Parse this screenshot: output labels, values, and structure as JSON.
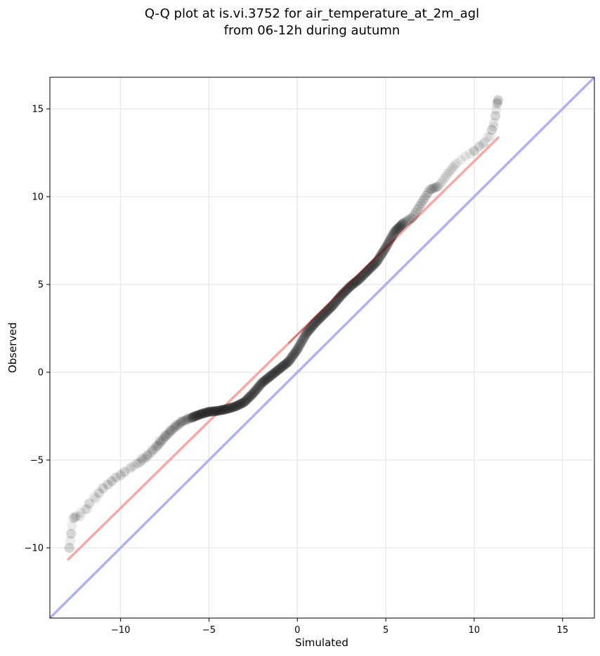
{
  "chart_data": {
    "type": "scatter",
    "title_line1": "Q-Q plot at is.vi.3752 for air_temperature_at_2m_agl",
    "title_line2": "from 06-12h during autumn",
    "xlabel": "Simulated",
    "ylabel": "Observed",
    "xlim": [
      -14,
      16.8
    ],
    "ylim": [
      -14,
      16.8
    ],
    "xticks": [
      -10,
      -5,
      0,
      5,
      10,
      15
    ],
    "yticks": [
      -10,
      -5,
      0,
      5,
      10,
      15
    ],
    "xtick_labels": [
      "−10",
      "−5",
      "0",
      "5",
      "10",
      "15"
    ],
    "ytick_labels": [
      "−10",
      "−5",
      "0",
      "5",
      "10",
      "15"
    ],
    "grid": true,
    "colors": {
      "points": "#222222",
      "fit_line": "#f4a0a0",
      "identity_line": "#a8a8f0",
      "fit_segment_dark": "#8b0000"
    },
    "identity_line": {
      "x": [
        -14,
        16.8
      ],
      "y": [
        -14,
        16.8
      ]
    },
    "fit_line": {
      "x": [
        -13,
        11.4
      ],
      "y": [
        -10.7,
        13.4
      ]
    },
    "quantile_curve": [
      [
        -12.9,
        -10.0
      ],
      [
        -12.8,
        -9.2
      ],
      [
        -12.7,
        -8.3
      ],
      [
        -12.5,
        -8.2
      ],
      [
        -12.0,
        -7.8
      ],
      [
        -11.5,
        -7.1
      ],
      [
        -11.0,
        -6.6
      ],
      [
        -10.5,
        -6.2
      ],
      [
        -10.0,
        -5.8
      ],
      [
        -9.5,
        -5.5
      ],
      [
        -9.0,
        -5.2
      ],
      [
        -8.5,
        -4.8
      ],
      [
        -8.0,
        -4.3
      ],
      [
        -7.5,
        -3.7
      ],
      [
        -7.0,
        -3.2
      ],
      [
        -6.5,
        -2.8
      ],
      [
        -6.0,
        -2.6
      ],
      [
        -5.5,
        -2.4
      ],
      [
        -5.0,
        -2.25
      ],
      [
        -4.5,
        -2.2
      ],
      [
        -4.0,
        -2.1
      ],
      [
        -3.5,
        -1.95
      ],
      [
        -3.0,
        -1.7
      ],
      [
        -2.5,
        -1.2
      ],
      [
        -2.0,
        -0.6
      ],
      [
        -1.5,
        -0.2
      ],
      [
        -1.0,
        0.2
      ],
      [
        -0.5,
        0.6
      ],
      [
        0.0,
        1.3
      ],
      [
        0.5,
        2.2
      ],
      [
        1.0,
        2.8
      ],
      [
        1.5,
        3.3
      ],
      [
        2.0,
        3.8
      ],
      [
        2.5,
        4.4
      ],
      [
        3.0,
        4.9
      ],
      [
        3.5,
        5.3
      ],
      [
        4.0,
        5.8
      ],
      [
        4.5,
        6.3
      ],
      [
        5.0,
        7.1
      ],
      [
        5.5,
        8.0
      ],
      [
        6.0,
        8.5
      ],
      [
        6.5,
        8.8
      ],
      [
        7.0,
        9.6
      ],
      [
        7.5,
        10.4
      ],
      [
        8.0,
        10.6
      ],
      [
        8.5,
        11.3
      ],
      [
        9.0,
        11.9
      ],
      [
        9.5,
        12.3
      ],
      [
        10.0,
        12.6
      ],
      [
        10.5,
        13.0
      ],
      [
        11.0,
        13.8
      ],
      [
        11.2,
        14.6
      ],
      [
        11.3,
        15.3
      ],
      [
        11.35,
        15.5
      ]
    ],
    "outer_points": [
      [
        -12.9,
        -10.0
      ],
      [
        -12.8,
        -9.2
      ],
      [
        -12.6,
        -8.3
      ],
      [
        -12.3,
        -8.2
      ],
      [
        -11.9,
        -7.8
      ],
      [
        -11.8,
        -7.5
      ],
      [
        -11.4,
        -7.2
      ],
      [
        -11.2,
        -6.9
      ],
      [
        -11.0,
        -6.6
      ],
      [
        -10.7,
        -6.4
      ],
      [
        -10.5,
        -6.2
      ],
      [
        -10.3,
        -6.0
      ],
      [
        -10.0,
        -5.9
      ],
      [
        -9.8,
        -5.7
      ],
      [
        -9.4,
        -5.4
      ],
      [
        -9.1,
        -5.2
      ],
      [
        -8.8,
        -4.9
      ],
      [
        -8.5,
        -4.7
      ],
      [
        -8.2,
        -4.4
      ],
      [
        -8.0,
        -4.2
      ],
      [
        -7.8,
        -3.9
      ],
      [
        -7.5,
        -3.6
      ],
      [
        -7.2,
        -3.3
      ],
      [
        -6.9,
        -3.0
      ],
      [
        -6.6,
        -2.8
      ],
      [
        -6.2,
        -2.6
      ],
      [
        -5.8,
        -2.45
      ],
      [
        -5.4,
        -2.35
      ],
      [
        -5.0,
        -2.25
      ],
      [
        -4.6,
        -2.2
      ],
      [
        -4.2,
        -2.12
      ],
      [
        10.0,
        12.6
      ],
      [
        10.3,
        12.9
      ],
      [
        10.6,
        13.1
      ],
      [
        10.9,
        13.4
      ],
      [
        11.0,
        13.8
      ],
      [
        11.1,
        14.0
      ],
      [
        11.2,
        14.6
      ],
      [
        11.3,
        15.3
      ],
      [
        11.35,
        15.5
      ]
    ]
  }
}
